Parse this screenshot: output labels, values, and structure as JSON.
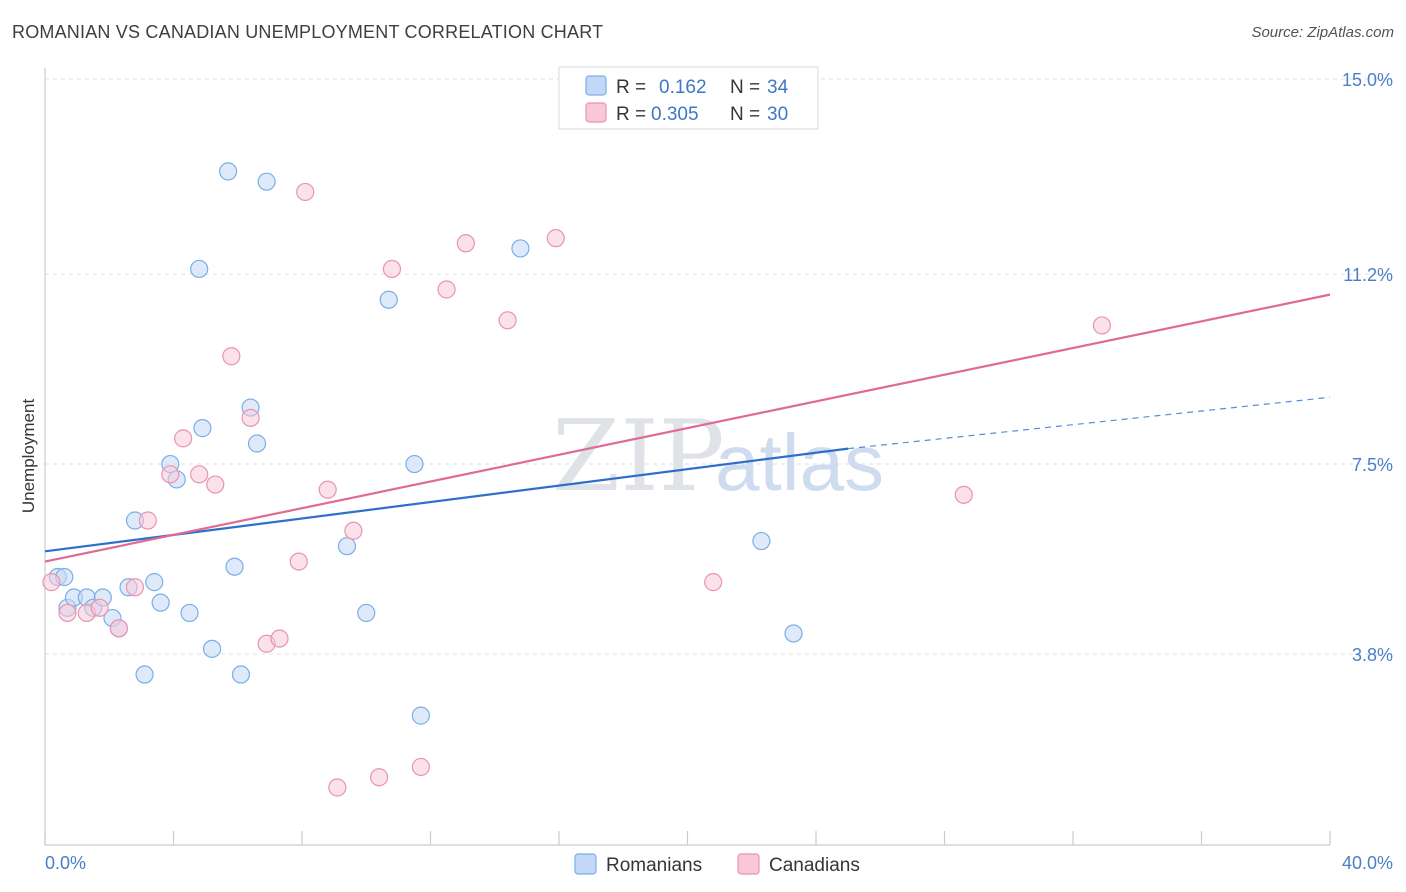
{
  "header": {
    "title": "ROMANIAN VS CANADIAN UNEMPLOYMENT CORRELATION CHART",
    "source": "Source: ZipAtlas.com"
  },
  "chart_data": {
    "type": "scatter",
    "title": "ROMANIAN VS CANADIAN UNEMPLOYMENT CORRELATION CHART",
    "xlabel": "",
    "ylabel": "Unemployment",
    "xlim": [
      0,
      40
    ],
    "ylim": [
      0,
      15.5
    ],
    "x_tick_labels": [
      "0.0%",
      "40.0%"
    ],
    "y_ticks": [
      3.8,
      7.5,
      11.2,
      15.0
    ],
    "y_tick_labels": [
      "3.8%",
      "7.5%",
      "11.2%",
      "15.0%"
    ],
    "grid": true,
    "watermark": {
      "zip": "ZIP",
      "atlas": "atlas"
    },
    "legend": {
      "position": "top-center",
      "entries": [
        {
          "name": "Romanians",
          "r_label": "R =",
          "r": "0.162",
          "n_label": "N =",
          "n": "34",
          "color": "#7aaee8",
          "fill": "#b9d3f2"
        },
        {
          "name": "Canadians",
          "r_label": "R =",
          "r": "0.305",
          "n_label": "N =",
          "n": "30",
          "color": "#ea93b0",
          "fill": "#f6c3d3"
        }
      ]
    },
    "series": [
      {
        "name": "Romanians",
        "color": "#7aaee8",
        "fill": "#c2d8f4",
        "trend": {
          "x": [
            0,
            25
          ],
          "y": [
            5.8,
            7.8
          ],
          "dashed_to": [
            40,
            8.8
          ],
          "color": "#2f6fcc"
        },
        "points": [
          [
            0.4,
            5.3
          ],
          [
            0.6,
            5.3
          ],
          [
            0.7,
            4.7
          ],
          [
            0.9,
            4.9
          ],
          [
            1.3,
            4.9
          ],
          [
            1.5,
            4.7
          ],
          [
            1.8,
            4.9
          ],
          [
            2.1,
            4.5
          ],
          [
            2.3,
            4.3
          ],
          [
            2.6,
            5.1
          ],
          [
            2.8,
            6.4
          ],
          [
            3.1,
            3.4
          ],
          [
            3.4,
            5.2
          ],
          [
            3.6,
            4.8
          ],
          [
            3.9,
            7.5
          ],
          [
            4.1,
            7.2
          ],
          [
            4.5,
            4.6
          ],
          [
            4.8,
            11.3
          ],
          [
            4.9,
            8.2
          ],
          [
            5.2,
            3.9
          ],
          [
            5.7,
            13.2
          ],
          [
            5.9,
            5.5
          ],
          [
            6.1,
            3.4
          ],
          [
            6.4,
            8.6
          ],
          [
            6.6,
            7.9
          ],
          [
            6.9,
            13.0
          ],
          [
            9.4,
            5.9
          ],
          [
            10.0,
            4.6
          ],
          [
            10.7,
            10.7
          ],
          [
            11.5,
            7.5
          ],
          [
            11.7,
            2.6
          ],
          [
            14.8,
            11.7
          ],
          [
            22.3,
            6.0
          ],
          [
            23.3,
            4.2
          ]
        ]
      },
      {
        "name": "Canadians",
        "color": "#ea93b0",
        "fill": "#f7c8d7",
        "trend": {
          "x": [
            0,
            40
          ],
          "y": [
            5.6,
            10.8
          ],
          "color": "#e06a94"
        },
        "points": [
          [
            0.2,
            5.2
          ],
          [
            0.7,
            4.6
          ],
          [
            1.3,
            4.6
          ],
          [
            1.7,
            4.7
          ],
          [
            2.3,
            4.3
          ],
          [
            2.8,
            5.1
          ],
          [
            3.2,
            6.4
          ],
          [
            3.9,
            7.3
          ],
          [
            4.3,
            8.0
          ],
          [
            4.8,
            7.3
          ],
          [
            5.3,
            7.1
          ],
          [
            5.8,
            9.6
          ],
          [
            6.4,
            8.4
          ],
          [
            6.9,
            4.0
          ],
          [
            7.3,
            4.1
          ],
          [
            7.9,
            5.6
          ],
          [
            8.1,
            12.8
          ],
          [
            8.8,
            7.0
          ],
          [
            9.1,
            1.2
          ],
          [
            9.6,
            6.2
          ],
          [
            10.4,
            1.4
          ],
          [
            10.8,
            11.3
          ],
          [
            11.7,
            1.6
          ],
          [
            12.5,
            10.9
          ],
          [
            13.1,
            11.8
          ],
          [
            14.4,
            10.3
          ],
          [
            15.9,
            11.9
          ],
          [
            20.8,
            5.2
          ],
          [
            28.6,
            6.9
          ],
          [
            32.9,
            10.2
          ]
        ]
      }
    ]
  }
}
